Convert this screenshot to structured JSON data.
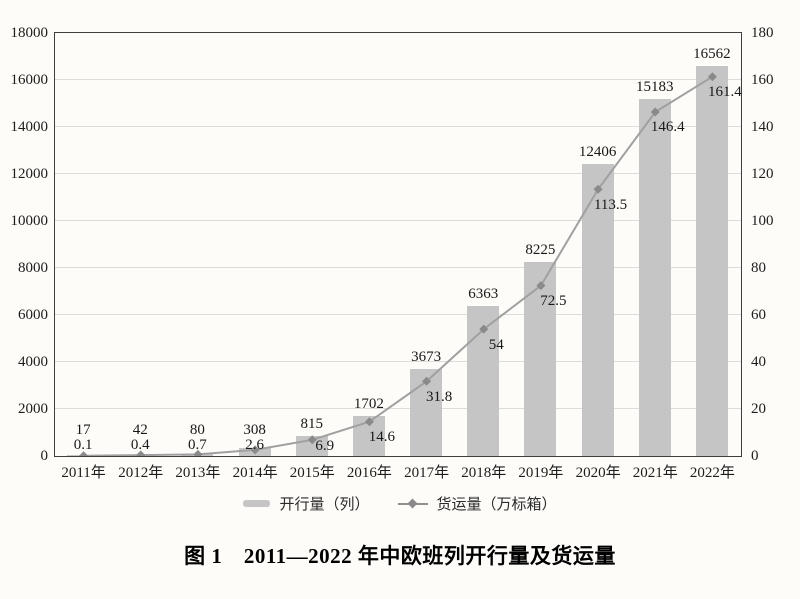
{
  "figure": {
    "title": "图 1　2011—2022 年中欧班列开行量及货运量",
    "legend": [
      {
        "type": "bar",
        "label": "开行量（列）"
      },
      {
        "type": "line",
        "label": "货运量（万标箱）"
      }
    ]
  },
  "colors": {
    "background": "#fdfcf8",
    "bar": "#c5c5c5",
    "line": "#a0a0a0",
    "marker": "#8a8a8a",
    "gridline": "#dcdcdc",
    "axis_border": "#3e3e3e"
  },
  "chart_data": {
    "type": "bar",
    "subtype": "combo-bar-line-dual-axis",
    "title": "图 1　2011—2022 年中欧班列开行量及货运量",
    "categories": [
      "2011年",
      "2012年",
      "2013年",
      "2014年",
      "2015年",
      "2016年",
      "2017年",
      "2018年",
      "2019年",
      "2020年",
      "2021年",
      "2022年"
    ],
    "series": [
      {
        "name": "开行量（列）",
        "type": "bar",
        "axis": "left",
        "values": [
          17,
          42,
          80,
          308,
          815,
          1702,
          3673,
          6363,
          8225,
          12406,
          15183,
          16562
        ],
        "labels": [
          "17",
          "42",
          "80",
          "308",
          "815",
          "1702",
          "3673",
          "6363",
          "8225",
          "12406",
          "15183",
          "16562"
        ],
        "color": "#c5c5c5"
      },
      {
        "name": "货运量（万标箱）",
        "type": "line",
        "axis": "right",
        "values": [
          0.1,
          0.4,
          0.7,
          2.6,
          6.9,
          14.6,
          31.8,
          54,
          72.5,
          113.5,
          146.4,
          161.4
        ],
        "labels": [
          "0.1",
          "0.4",
          "0.7",
          "2.6",
          "6.9",
          "14.6",
          "31.8",
          "54",
          "72.5",
          "113.5",
          "146.4",
          "161.4"
        ],
        "color": "#a0a0a0",
        "marker": "diamond",
        "marker_color": "#8a8a8a"
      }
    ],
    "left_axis": {
      "min": 0,
      "max": 18000,
      "step": 2000,
      "ticks": [
        "0",
        "2000",
        "4000",
        "6000",
        "8000",
        "10000",
        "12000",
        "14000",
        "16000",
        "18000"
      ]
    },
    "right_axis": {
      "min": 0,
      "max": 180,
      "step": 20,
      "ticks": [
        "0",
        "20",
        "40",
        "60",
        "80",
        "100",
        "120",
        "140",
        "160",
        "180"
      ]
    },
    "grid": true,
    "legend_position": "bottom",
    "xlabel": "",
    "ylabel_left": "开行量（列）",
    "ylabel_right": "货运量（万标箱）"
  }
}
